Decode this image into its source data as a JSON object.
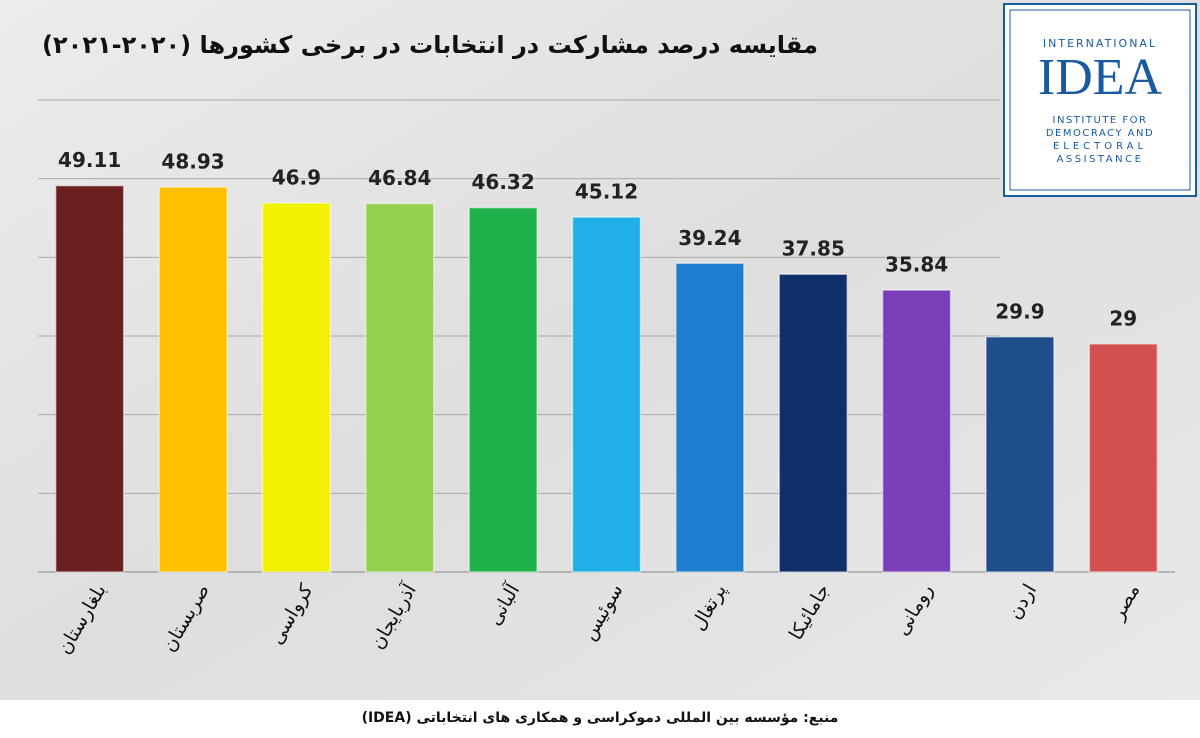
{
  "chart_data": {
    "type": "bar",
    "title": "مقایسه درصد مشارکت در انتخابات در برخی کشورها (۲۰۲۰-۲۰۲۱)",
    "source": "منبع: مؤسسه بین المللی دموکراسی و همکاری های انتخاباتی (IDEA)",
    "logo": {
      "top": "INTERNATIONAL",
      "name": "IDEA",
      "lines": [
        "INSTITUTE FOR",
        "DEMOCRACY AND",
        "ELECTORAL",
        "ASSISTANCE"
      ]
    },
    "categories": [
      "بلغارستان",
      "صربستان",
      "کرواسی",
      "آذربایجان",
      "آلبانی",
      "سوئیس",
      "پرتغال",
      "جامائیکا",
      "رومانی",
      "اردن",
      "مصر"
    ],
    "values": [
      49.11,
      48.93,
      46.9,
      46.84,
      46.32,
      45.12,
      39.24,
      37.85,
      35.84,
      29.9,
      29
    ],
    "colors": [
      "#6b1f1f",
      "#ffc000",
      "#f2f200",
      "#92d050",
      "#1fb14a",
      "#1fb0e8",
      "#1f7dd0",
      "#0f2f6a",
      "#7a3fb8",
      "#1f4f8a",
      "#d45050"
    ],
    "ylim": [
      0,
      60
    ],
    "yticks": [
      0,
      10,
      20,
      30,
      40,
      50,
      60
    ],
    "grid": true
  }
}
